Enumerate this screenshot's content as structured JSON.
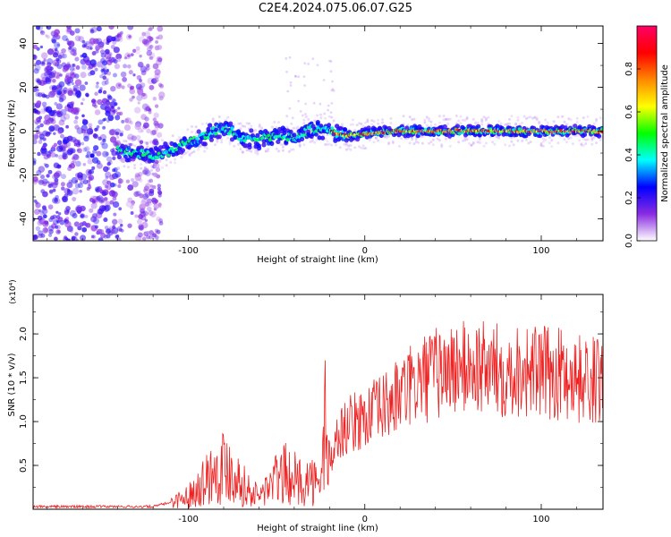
{
  "figure": {
    "title": "C2E4.2024.075.06.07.G25"
  },
  "chart_data": [
    {
      "type": "heatmap",
      "title": "C2E4.2024.075.06.07.G25",
      "xlabel": "Height of straight line (km)",
      "ylabel": "Frequency (Hz)",
      "xlim": [
        -188,
        135
      ],
      "ylim": [
        -50,
        48
      ],
      "xticks": [
        -100,
        0,
        100
      ],
      "yticks": [
        -40,
        -20,
        0,
        20,
        40
      ],
      "colorbar": {
        "label": "Normalized spectral amplitude",
        "range": [
          0.0,
          1.0
        ],
        "ticks": [
          0.0,
          0.2,
          0.4,
          0.6,
          0.8
        ],
        "colormap": [
          "#ffffff",
          "#8a2be2",
          "#0000ff",
          "#00ffff",
          "#00ff00",
          "#ffff00",
          "#ff8800",
          "#ff0000",
          "#ff0066"
        ]
      },
      "track": {
        "x": [
          -140,
          -130,
          -120,
          -110,
          -100,
          -90,
          -80,
          -70,
          -60,
          -50,
          -40,
          -30,
          -20,
          -10,
          0,
          20,
          40,
          60,
          80,
          100,
          120,
          135
        ],
        "y": [
          -9,
          -10,
          -11,
          -9,
          -5,
          -2,
          2,
          -3,
          -4,
          -2,
          -3,
          1,
          0,
          -2,
          -1,
          0,
          0,
          0,
          0,
          0,
          0,
          0
        ]
      },
      "noise_band_x": [
        -188,
        -115
      ]
    },
    {
      "type": "line",
      "xlabel": "Height of straight line (km)",
      "ylabel": "SNR (10 * v/v)",
      "y_multiplier": "(x10⁴)",
      "xlim": [
        -188,
        135
      ],
      "ylim": [
        0,
        2.45
      ],
      "xticks": [
        -100,
        0,
        100
      ],
      "yticks": [
        0.5,
        1.0,
        1.5,
        2.0
      ],
      "color": "#ee2222",
      "series": [
        {
          "x": [
            -188,
            -150,
            -120,
            -110,
            -100,
            -90,
            -85,
            -80,
            -75,
            -70,
            -65,
            -60,
            -55,
            -50,
            -45,
            -40,
            -35,
            -30,
            -25,
            -22,
            -20,
            -15,
            -10,
            0,
            10,
            20,
            30,
            40,
            50,
            60,
            70,
            80,
            90,
            100,
            110,
            120,
            135
          ],
          "y": [
            0.03,
            0.03,
            0.03,
            0.08,
            0.15,
            0.35,
            0.45,
            0.5,
            0.45,
            0.3,
            0.2,
            0.15,
            0.25,
            0.35,
            0.4,
            0.35,
            0.3,
            0.35,
            0.2,
            1.2,
            0.5,
            0.85,
            0.95,
            1.05,
            1.15,
            1.3,
            1.45,
            1.55,
            1.6,
            1.62,
            1.6,
            1.58,
            1.6,
            1.55,
            1.55,
            1.5,
            1.45
          ]
        }
      ]
    }
  ]
}
